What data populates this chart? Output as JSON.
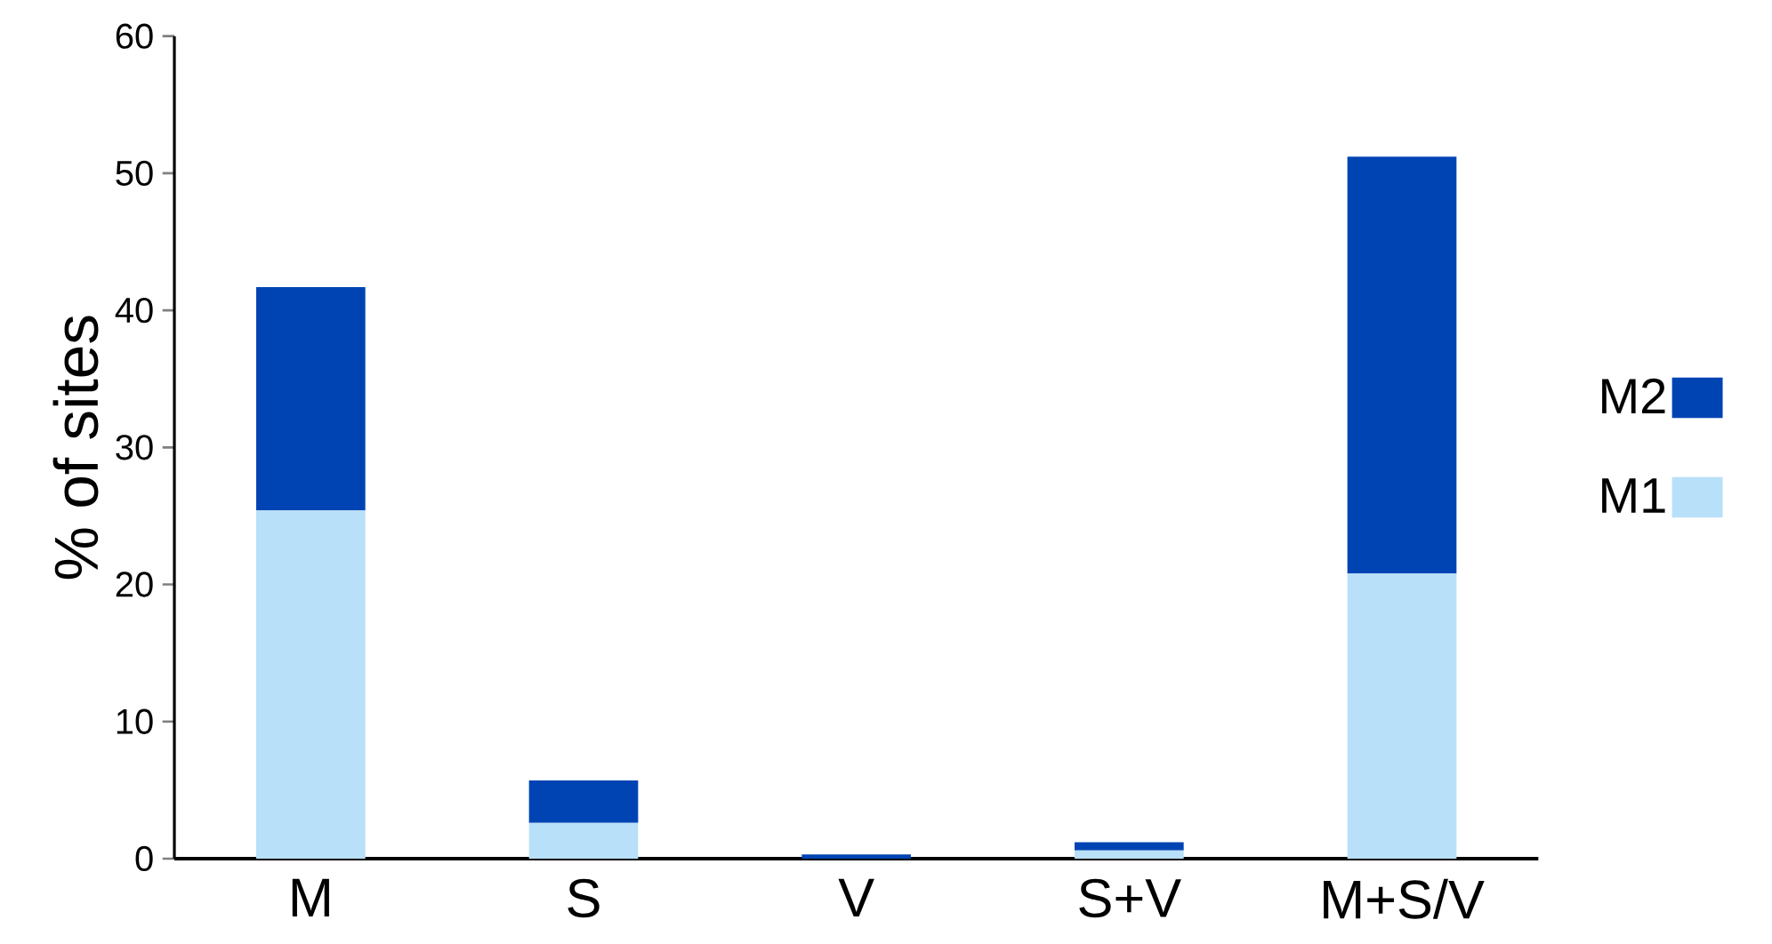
{
  "chart_data": {
    "type": "bar",
    "stacked": true,
    "ylabel": "% of sites",
    "categories": [
      "M",
      "S",
      "V",
      "S+V",
      "M+S/V"
    ],
    "series": [
      {
        "name": "M1",
        "color": "#b8e0f8",
        "values": [
          25.4,
          2.6,
          0,
          0.6,
          20.8
        ]
      },
      {
        "name": "M2",
        "color": "#0044b4",
        "values": [
          16.3,
          3.1,
          0.3,
          0.6,
          30.4
        ]
      }
    ],
    "ylim": [
      0,
      60
    ],
    "yticks": [
      0,
      10,
      20,
      30,
      40,
      50,
      60
    ],
    "legend": "right",
    "grid": false
  }
}
